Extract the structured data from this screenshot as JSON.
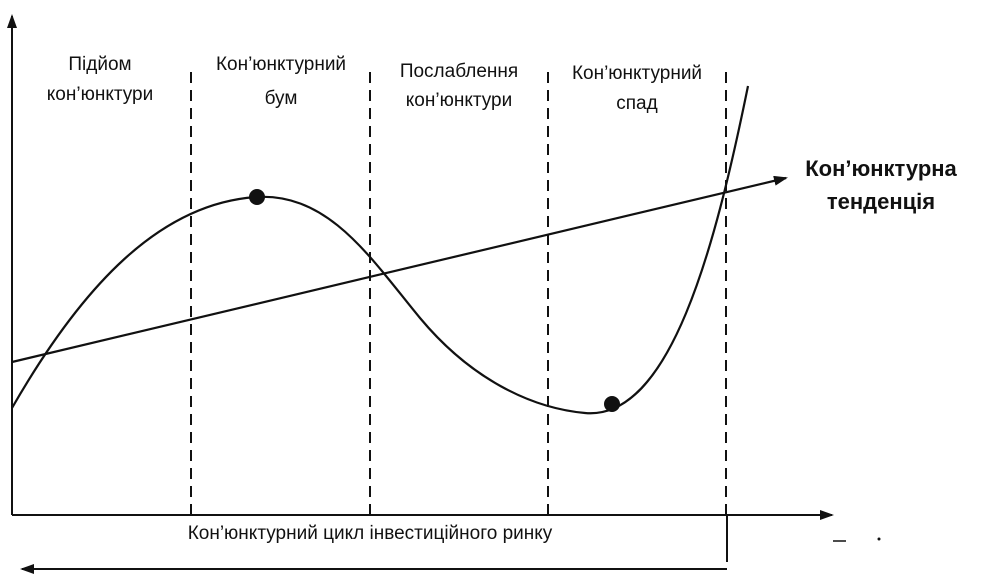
{
  "phases": [
    {
      "line1": "Підйом",
      "line2": "кон’юнктури"
    },
    {
      "line1": "Кон’юнктурний",
      "line2": "бум"
    },
    {
      "line1": "Послаблення",
      "line2": "кон’юнктури"
    },
    {
      "line1": "Кон’юнктурний",
      "line2": "спад"
    }
  ],
  "trend_label": {
    "line1": "Кон’юнктурна",
    "line2": "тенденція"
  },
  "cycle_label": "Кон’юнктурний цикл інвестиційного ринку",
  "colors": {
    "ink": "#111111",
    "background": "#ffffff"
  }
}
